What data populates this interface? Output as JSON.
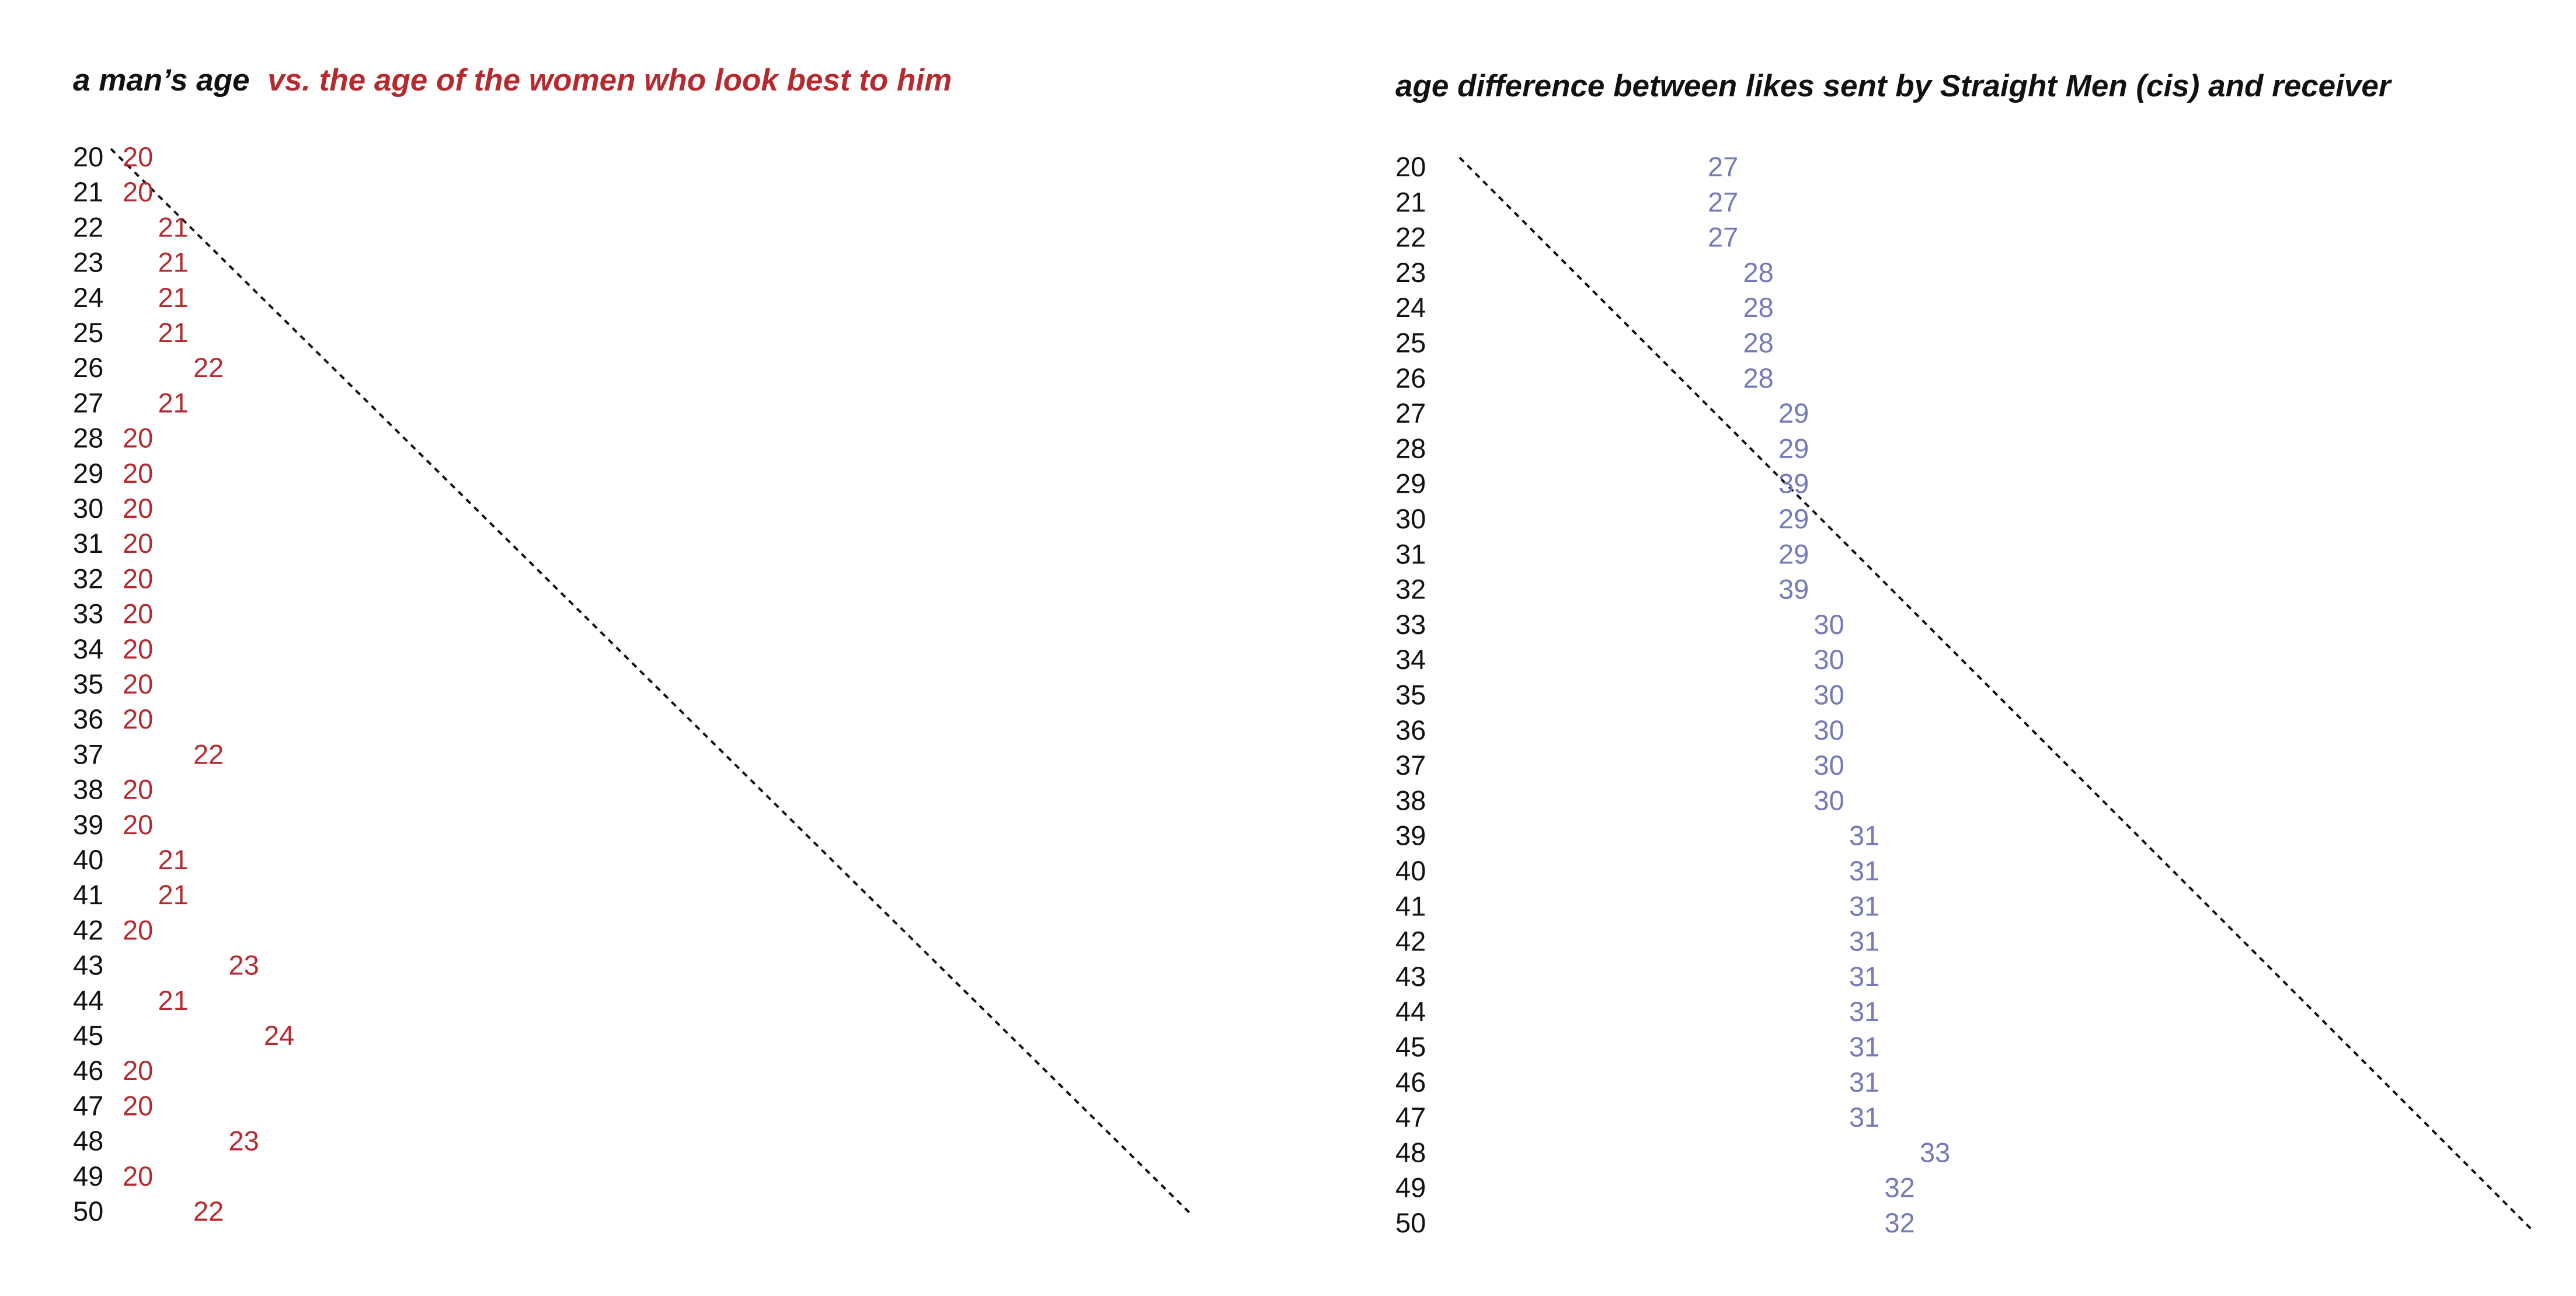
{
  "chart_data": [
    {
      "type": "scatter",
      "title_black": "a man’s age",
      "title_red": "vs. the age of the women who look best to him",
      "x": [
        20,
        21,
        22,
        23,
        24,
        25,
        26,
        27,
        28,
        29,
        30,
        31,
        32,
        33,
        34,
        35,
        36,
        37,
        38,
        39,
        40,
        41,
        42,
        43,
        44,
        45,
        46,
        47,
        48,
        49,
        50
      ],
      "y": [
        20,
        20,
        21,
        21,
        21,
        21,
        22,
        21,
        20,
        20,
        20,
        20,
        20,
        20,
        20,
        20,
        20,
        22,
        20,
        20,
        21,
        21,
        20,
        23,
        21,
        24,
        20,
        20,
        23,
        20,
        22
      ],
      "colors": {
        "age": "#111111",
        "value": "#b52a2f",
        "title_red": "#b52a2f",
        "diagonal": "#111111"
      },
      "reference_line": "dotted diagonal"
    },
    {
      "type": "scatter",
      "title": "age difference between likes sent by Straight Men (cis) and receiver",
      "x": [
        20,
        21,
        22,
        23,
        24,
        25,
        26,
        27,
        28,
        29,
        30,
        31,
        32,
        33,
        34,
        35,
        36,
        37,
        38,
        39,
        40,
        41,
        42,
        43,
        44,
        45,
        46,
        47,
        48,
        49,
        50
      ],
      "y": [
        27,
        27,
        27,
        28,
        28,
        28,
        28,
        29,
        29,
        39,
        29,
        29,
        39,
        30,
        30,
        30,
        30,
        30,
        30,
        31,
        31,
        31,
        31,
        31,
        31,
        31,
        31,
        31,
        33,
        32,
        32
      ],
      "colors": {
        "age": "#111111",
        "value": "#7479b8",
        "diagonal": "#111111"
      },
      "reference_line": "dotted diagonal"
    }
  ]
}
